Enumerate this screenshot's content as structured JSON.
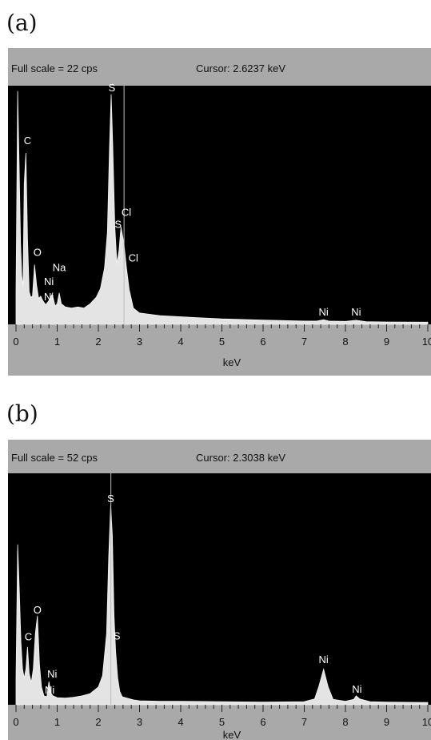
{
  "panels": [
    {
      "label": "(a)",
      "full_scale": "Full scale = 22  cps",
      "cursor": "Cursor:  2.6237 keV",
      "xlabel": "keV",
      "chart_data": {
        "type": "area",
        "title": "",
        "xlabel": "keV",
        "ylabel": "",
        "xlim": [
          0,
          10
        ],
        "ylim": [
          0,
          22
        ],
        "cursor_keV": 2.6237,
        "x_ticks": [
          "0",
          "1",
          "2",
          "3",
          "4",
          "5",
          "6",
          "7",
          "8",
          "9",
          "10"
        ],
        "series": [
          {
            "x": [
              0.0,
              0.04,
              0.08,
              0.11,
              0.14,
              0.17,
              0.2,
              0.24,
              0.28,
              0.32,
              0.36,
              0.4,
              0.45,
              0.5,
              0.55,
              0.6,
              0.65,
              0.72,
              0.8,
              0.88,
              0.95,
              1.0,
              1.05,
              1.1,
              1.2,
              1.35,
              1.5,
              1.65,
              1.8,
              1.95,
              2.05,
              2.15,
              2.22,
              2.27,
              2.31,
              2.35,
              2.4,
              2.45,
              2.5,
              2.55,
              2.62,
              2.68,
              2.75,
              2.85,
              3.0,
              3.2,
              3.5,
              4.0,
              4.5,
              5.0,
              5.5,
              6.0,
              6.5,
              7.0,
              7.3,
              7.47,
              7.6,
              8.0,
              8.26,
              8.5,
              9.0,
              10.0
            ],
            "values": [
              3.0,
              21.5,
              14.0,
              7.5,
              4.5,
              3.5,
              13.0,
              15.8,
              8.0,
              3.0,
              2.5,
              2.6,
              5.5,
              3.6,
              2.4,
              2.6,
              2.2,
              1.8,
              2.2,
              2.8,
              1.7,
              1.9,
              2.9,
              1.9,
              1.6,
              1.5,
              1.6,
              1.5,
              1.9,
              2.5,
              3.3,
              5.2,
              8.5,
              16.2,
              21.2,
              16.5,
              9.0,
              5.6,
              6.8,
              9.0,
              7.5,
              5.3,
              3.2,
              1.5,
              1.05,
              0.95,
              0.8,
              0.7,
              0.6,
              0.5,
              0.45,
              0.4,
              0.35,
              0.3,
              0.3,
              0.42,
              0.3,
              0.27,
              0.38,
              0.25,
              0.22,
              0.2
            ]
          }
        ],
        "annotations": [
          {
            "text": "C",
            "x": 0.28,
            "y": 16.6
          },
          {
            "text": "O",
            "x": 0.52,
            "y": 6.3
          },
          {
            "text": "Na",
            "x": 1.05,
            "y": 4.9
          },
          {
            "text": "Ni",
            "x": 0.8,
            "y": 3.6
          },
          {
            "text": "Ni",
            "x": 0.8,
            "y": 2.2
          },
          {
            "text": "S",
            "x": 2.33,
            "y": 21.5
          },
          {
            "text": "S",
            "x": 2.48,
            "y": 8.9
          },
          {
            "text": "Cl",
            "x": 2.68,
            "y": 10.0
          },
          {
            "text": "Cl",
            "x": 2.85,
            "y": 5.8
          },
          {
            "text": "Ni",
            "x": 7.47,
            "y": 0.8
          },
          {
            "text": "Ni",
            "x": 8.26,
            "y": 0.8
          }
        ]
      }
    },
    {
      "label": "(b)",
      "full_scale": "Full scale = 52  cps",
      "cursor": "Cursor:  2.3038 keV",
      "xlabel": "keV",
      "chart_data": {
        "type": "area",
        "title": "",
        "xlabel": "keV",
        "ylabel": "",
        "xlim": [
          0,
          10
        ],
        "ylim": [
          0,
          52
        ],
        "cursor_keV": 2.3038,
        "x_ticks": [
          "0",
          "1",
          "2",
          "3",
          "4",
          "5",
          "6",
          "7",
          "8",
          "9",
          "10"
        ],
        "series": [
          {
            "x": [
              0.0,
              0.04,
              0.08,
              0.12,
              0.16,
              0.2,
              0.24,
              0.28,
              0.32,
              0.37,
              0.42,
              0.47,
              0.52,
              0.57,
              0.62,
              0.68,
              0.75,
              0.8,
              0.85,
              0.9,
              1.0,
              1.2,
              1.4,
              1.6,
              1.8,
              2.0,
              2.1,
              2.2,
              2.25,
              2.3,
              2.34,
              2.38,
              2.42,
              2.47,
              2.52,
              2.58,
              2.7,
              2.85,
              3.0,
              3.5,
              4.0,
              5.0,
              6.0,
              7.0,
              7.25,
              7.35,
              7.47,
              7.58,
              7.7,
              8.0,
              8.2,
              8.26,
              8.35,
              8.6,
              9.0,
              10.0
            ],
            "values": [
              6.0,
              36.0,
              26.0,
              14.0,
              8.0,
              6.0,
              8.0,
              13.0,
              7.0,
              5.0,
              8.0,
              16.0,
              20.0,
              9.0,
              4.0,
              2.0,
              1.8,
              5.2,
              2.6,
              2.0,
              1.6,
              1.5,
              1.7,
              2.0,
              2.5,
              4.0,
              6.5,
              16.0,
              33.0,
              45.0,
              38.0,
              20.0,
              12.0,
              6.0,
              3.0,
              1.8,
              1.5,
              1.1,
              0.9,
              0.8,
              0.8,
              0.7,
              0.6,
              0.7,
              1.3,
              4.0,
              8.0,
              4.0,
              1.2,
              0.8,
              1.2,
              2.0,
              1.3,
              0.7,
              0.6,
              0.5
            ]
          }
        ],
        "annotations": [
          {
            "text": "S",
            "x": 2.3,
            "y": 45.5
          },
          {
            "text": "O",
            "x": 0.52,
            "y": 20.5
          },
          {
            "text": "C",
            "x": 0.3,
            "y": 14.5
          },
          {
            "text": "S",
            "x": 2.45,
            "y": 14.7
          },
          {
            "text": "Ni",
            "x": 0.88,
            "y": 6.1
          },
          {
            "text": "Ni",
            "x": 0.82,
            "y": 2.5
          },
          {
            "text": "Ni",
            "x": 7.47,
            "y": 9.4
          },
          {
            "text": "Ni",
            "x": 8.28,
            "y": 2.7
          }
        ]
      }
    }
  ]
}
